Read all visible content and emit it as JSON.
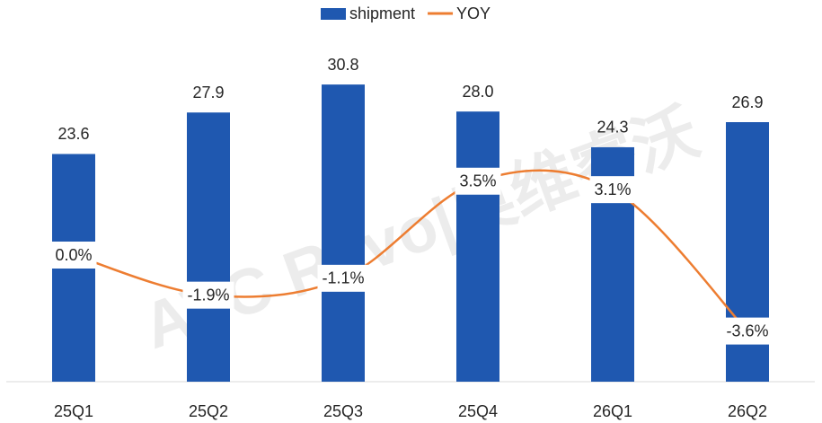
{
  "chart_data": {
    "type": "bar_line",
    "watermark": "AVC Revo|奥维睿沃",
    "categories": [
      "25Q1",
      "25Q2",
      "25Q3",
      "25Q4",
      "26Q1",
      "26Q2"
    ],
    "series": [
      {
        "name": "shipment",
        "type": "bar",
        "color": "#1f58b0",
        "values": [
          23.6,
          27.9,
          30.8,
          28.0,
          24.3,
          26.9
        ],
        "value_labels": [
          "23.6",
          "27.9",
          "30.8",
          "28.0",
          "24.3",
          "26.9"
        ]
      },
      {
        "name": "YOY",
        "type": "line",
        "axis": "y2",
        "color": "#ed7d31",
        "values": [
          0.0,
          -1.9,
          -1.1,
          3.5,
          3.1,
          -3.6
        ],
        "value_labels": [
          "0.0%",
          "-1.9%",
          "-1.1%",
          "3.5%",
          "3.1%",
          "-3.6%"
        ]
      }
    ],
    "ylim": [
      0,
      35
    ],
    "y2lim": [
      -6,
      10
    ],
    "legend": "top",
    "grid": false
  }
}
